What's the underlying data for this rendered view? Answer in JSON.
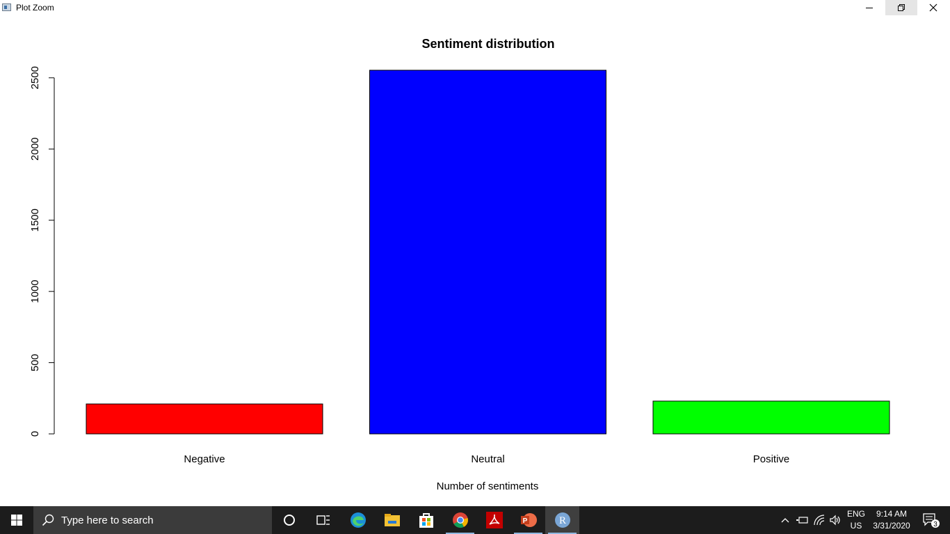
{
  "window": {
    "title": "Plot Zoom",
    "controls": [
      "minimize",
      "restore",
      "close"
    ]
  },
  "chart_data": {
    "type": "bar",
    "title": "Sentiment distribution",
    "xlabel": "Number of sentiments",
    "ylabel": "",
    "categories": [
      "Negative",
      "Neutral",
      "Positive"
    ],
    "values": [
      210,
      2553,
      230
    ],
    "colors": [
      "#ff0000",
      "#0000ff",
      "#00ff00"
    ],
    "yticks": [
      0,
      500,
      1000,
      1500,
      2000,
      2500
    ],
    "ylim": [
      0,
      2553
    ],
    "grid": false
  },
  "taskbar": {
    "search_placeholder": "Type here to search",
    "apps": [
      "cortana-icon",
      "task-view-icon",
      "edge-icon",
      "file-explorer-icon",
      "store-icon",
      "chrome-icon",
      "acrobat-icon",
      "powerpoint-icon",
      "r-icon"
    ],
    "language": {
      "line1": "ENG",
      "line2": "US"
    },
    "clock": {
      "time": "9:14 AM",
      "date": "3/31/2020"
    },
    "notification_count": "3"
  }
}
